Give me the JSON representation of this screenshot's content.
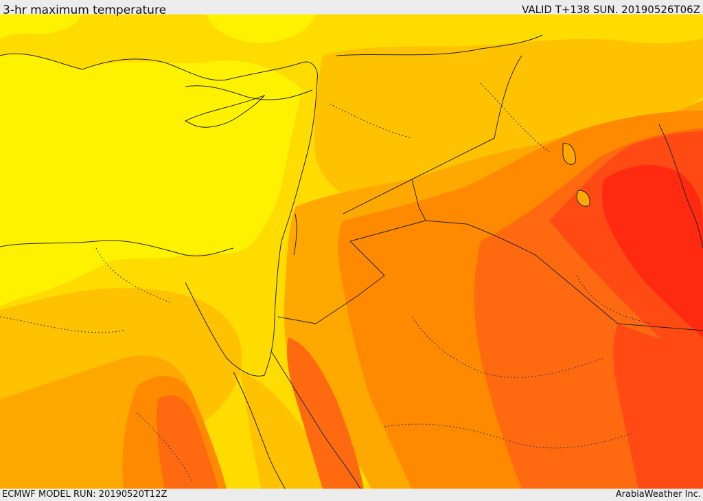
{
  "header": {
    "title": "3-hr maximum temperature",
    "valid": "VALID T+138 SUN. 20190526T06Z"
  },
  "footer": {
    "model_run": "ECMWF MODEL RUN: 20190520T12Z",
    "credit": "ArabiaWeather Inc."
  },
  "map": {
    "field": "3-hr maximum temperature",
    "palette": {
      "coolest": "#fff200",
      "cool": "#ffdc00",
      "mild": "#ffc200",
      "warm": "#ffa800",
      "hot": "#ff8a00",
      "very_hot": "#ff6a10",
      "extreme": "#ff4a14",
      "max": "#ff2a10",
      "land_outline": "#222222"
    }
  }
}
